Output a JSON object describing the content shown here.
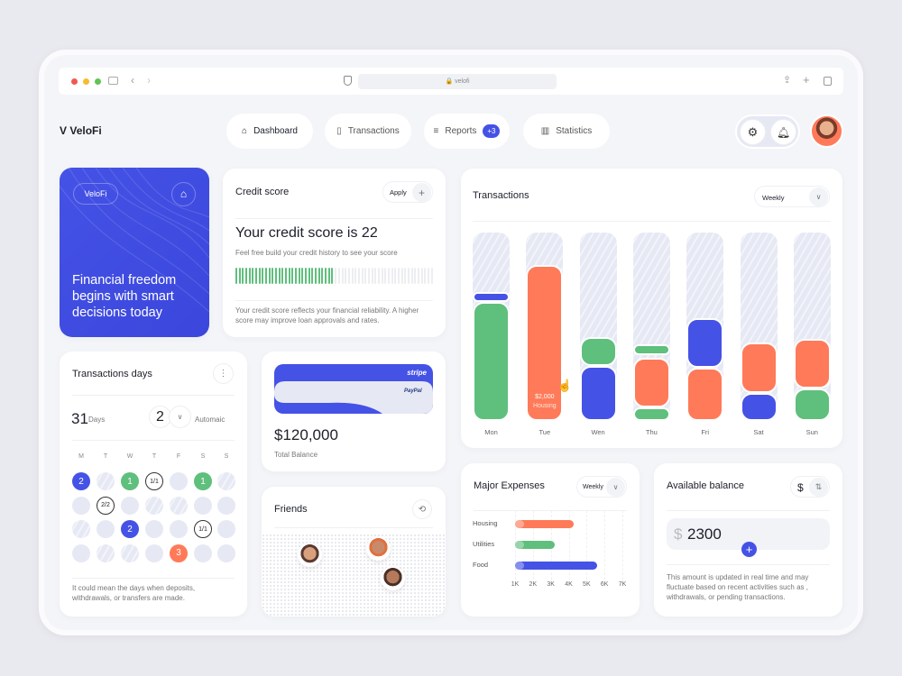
{
  "browser": {
    "url": "velofi"
  },
  "header": {
    "logo": "VeloFi",
    "nav": [
      {
        "label": "Dashboard",
        "icon": "home-icon"
      },
      {
        "label": "Transactions",
        "icon": "receipt-icon"
      },
      {
        "label": "Reports",
        "icon": "list-icon",
        "badge": "+3"
      },
      {
        "label": "Statistics",
        "icon": "chart-icon"
      }
    ]
  },
  "hero": {
    "brand": "VeloFi",
    "headline": "Financial freedom begins with smart decisions today",
    "color": "#4552e6"
  },
  "credit": {
    "title": "Credit score",
    "apply": "Apply",
    "heading": "Your credit score is 22",
    "sub": "Feel free build your credit history to see your score",
    "progress": 0.49,
    "note": "Your credit score reflects your financial reliability. A higher score may improve loan approvals and rates."
  },
  "transactions": {
    "title": "Transactions",
    "period": "Weekly",
    "tooltip": {
      "value": "$2,000",
      "label": "Housing"
    }
  },
  "days": {
    "title": "Transactions days",
    "count": "31",
    "count_label": "Days",
    "selected": "2",
    "mode": "Automaic",
    "weekdays": [
      "M",
      "T",
      "W",
      "T",
      "F",
      "S",
      "S"
    ],
    "cells": [
      [
        "b:2",
        "h",
        "g:1",
        "c:1/1",
        "p",
        "g:1",
        "h"
      ],
      [
        "p",
        "c:2/2",
        "p",
        "h",
        "h",
        "p",
        "p"
      ],
      [
        "h",
        "p",
        "b:2",
        "p",
        "p",
        "c:1/1",
        "p"
      ],
      [
        "p",
        "h",
        "h",
        "p",
        "o:3",
        "p",
        "p"
      ]
    ],
    "note": "It could mean the days when deposits, withdrawals, or transfers are made."
  },
  "balance": {
    "stripe": "stripe",
    "paypal": "PayPal",
    "amount": "$120,000",
    "label": "Total Balance"
  },
  "friends": {
    "title": "Friends"
  },
  "expenses": {
    "title": "Major Expenses",
    "period": "Weekly"
  },
  "available": {
    "title": "Available balance",
    "currency": "$",
    "amount": "2300",
    "note": "This amount is updated in real time and may fluctuate based on recent activities such as , withdrawals, or pending transactions."
  },
  "colors": {
    "blue": "#4552e6",
    "green": "#5fbf7c",
    "orange": "#ff7a59"
  },
  "chart_data": [
    {
      "type": "bar",
      "stacked": true,
      "title": "Transactions",
      "unit": "percent of column",
      "categories": [
        "Mon",
        "Tue",
        "Wen",
        "Thu",
        "Fri",
        "Sat",
        "Sun"
      ],
      "stacks": [
        [
          {
            "color": "green",
            "value": 63
          },
          {
            "color": "blue",
            "value": 7
          }
        ],
        [
          {
            "color": "orange",
            "value": 83
          }
        ],
        [
          {
            "color": "blue",
            "value": 29
          },
          {
            "color": "green",
            "value": 17
          }
        ],
        [
          {
            "color": "green",
            "value": 7
          },
          {
            "color": "orange",
            "value": 28
          },
          {
            "color": "green",
            "value": 7
          }
        ],
        [
          {
            "color": "orange",
            "value": 28
          },
          {
            "color": "blue",
            "value": 28
          }
        ],
        [
          {
            "color": "blue",
            "value": 15
          },
          {
            "color": "orange",
            "value": 28
          }
        ],
        [
          {
            "color": "green",
            "value": 17
          },
          {
            "color": "orange",
            "value": 28
          }
        ]
      ]
    },
    {
      "type": "bar",
      "orientation": "horizontal",
      "title": "Major Expenses",
      "categories": [
        "Housing",
        "Utilities",
        "Food"
      ],
      "values": [
        4.3,
        3.2,
        5.6
      ],
      "colors": [
        "orange",
        "green",
        "blue"
      ],
      "xticks": [
        "1K",
        "2K",
        "3K",
        "4K",
        "5K",
        "6K",
        "7K"
      ],
      "xlim": [
        1,
        7
      ]
    }
  ]
}
